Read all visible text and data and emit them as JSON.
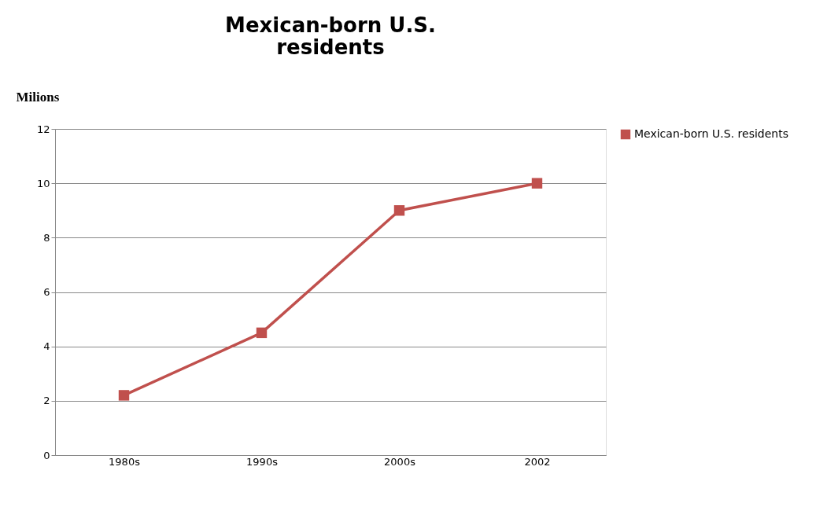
{
  "chart_data": {
    "type": "line",
    "title": [
      "Mexican-born U.S.",
      "residents"
    ],
    "ylabel": "Milions",
    "categories": [
      "1980s",
      "1990s",
      "2000s",
      "2002"
    ],
    "series": [
      {
        "name": "Mexican-born U.S. residents",
        "color": "#c0504d",
        "values": [
          2.2,
          4.5,
          9.0,
          10.0
        ]
      }
    ],
    "ylim": [
      0,
      12
    ],
    "yticks": [
      0,
      2,
      4,
      6,
      8,
      10,
      12
    ],
    "grid": "y",
    "legend": "right",
    "marker": "square",
    "line_style": "solid"
  }
}
